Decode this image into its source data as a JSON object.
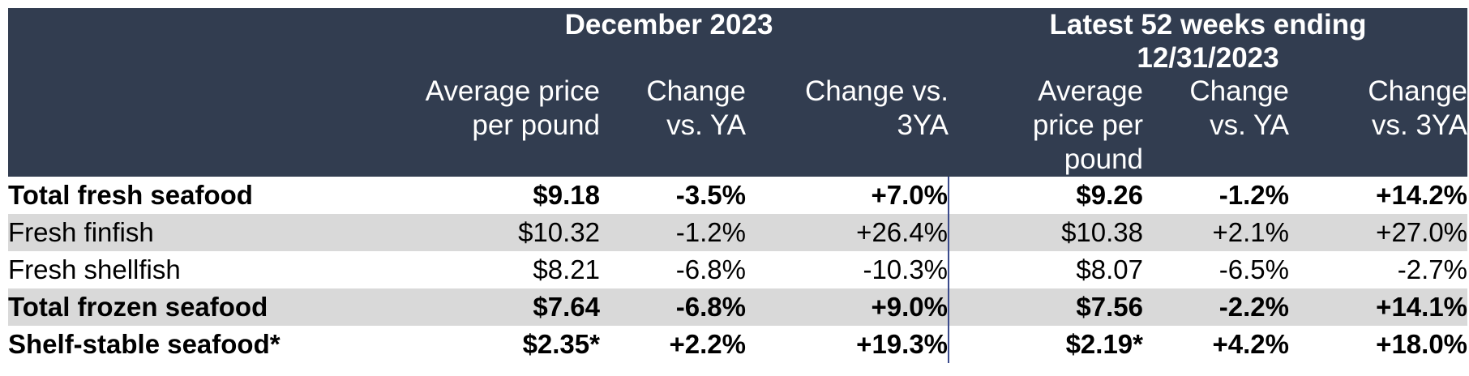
{
  "table": {
    "group_headers": {
      "left": "December 2023",
      "right_line1": "Latest 52 weeks ending",
      "right_line2": "12/31/2023"
    },
    "column_headers": [
      {
        "line1": "Average price",
        "line2": "per pound",
        "line3": ""
      },
      {
        "line1": "Change",
        "line2": "vs. YA",
        "line3": ""
      },
      {
        "line1": "Change vs.",
        "line2": "3YA",
        "line3": ""
      },
      {
        "line1": "Average",
        "line2": "price per",
        "line3": "pound"
      },
      {
        "line1": "Change",
        "line2": "vs. YA",
        "line3": ""
      },
      {
        "line1": "Change",
        "line2": "vs. 3YA",
        "line3": ""
      }
    ],
    "rows": [
      {
        "label": "Total fresh seafood",
        "values": [
          "$9.18",
          "-3.5%",
          "+7.0%",
          "$9.26",
          "-1.2%",
          "+14.2%"
        ],
        "bold": true,
        "shaded": false
      },
      {
        "label": "Fresh finfish",
        "values": [
          "$10.32",
          "-1.2%",
          "+26.4%",
          "$10.38",
          "+2.1%",
          "+27.0%"
        ],
        "bold": false,
        "shaded": true
      },
      {
        "label": "Fresh shellfish",
        "values": [
          "$8.21",
          "-6.8%",
          "-10.3%",
          "$8.07",
          "-6.5%",
          "-2.7%"
        ],
        "bold": false,
        "shaded": false
      },
      {
        "label": "Total frozen seafood",
        "values": [
          "$7.64",
          "-6.8%",
          "+9.0%",
          "$7.56",
          "-2.2%",
          "+14.1%"
        ],
        "bold": true,
        "shaded": true
      },
      {
        "label": "Shelf-stable seafood*",
        "values": [
          "$2.35*",
          "+2.2%",
          "+19.3%",
          "$2.19*",
          "+4.2%",
          "+18.0%"
        ],
        "bold": true,
        "shaded": false
      }
    ],
    "colors": {
      "header_bg": "#323d50",
      "header_text": "#ffffff",
      "shade": "#d9d9d9",
      "divider": "#3a4a8c"
    }
  }
}
